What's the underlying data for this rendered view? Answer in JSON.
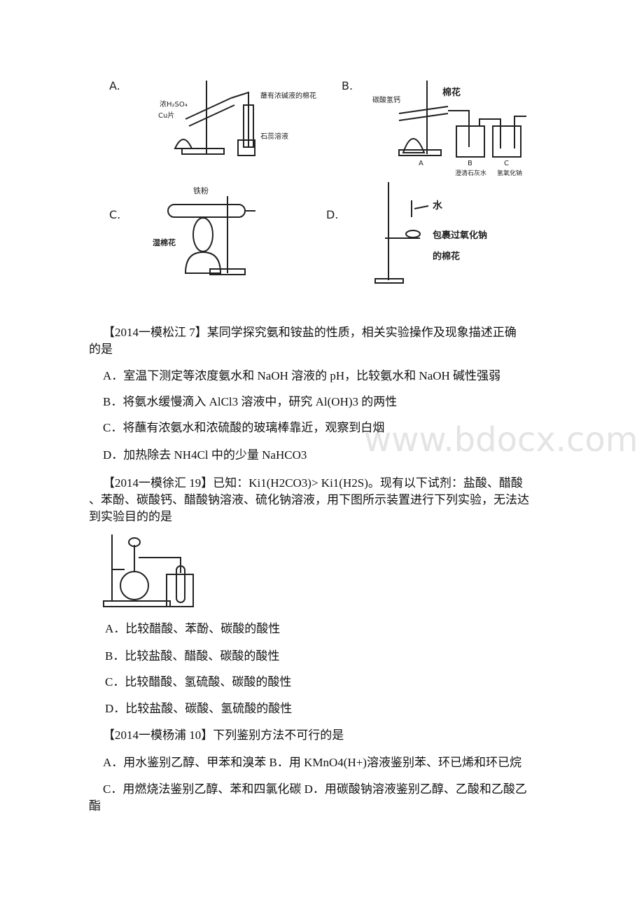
{
  "watermark": "www.bdocx.com",
  "figure1": {
    "panels": [
      {
        "label": "A.",
        "notes": [
          "浓H₂SO₄",
          "Cu片",
          "蘸有浓碱液的棉花",
          "石蕊溶液"
        ]
      },
      {
        "label": "B.",
        "notes": [
          "碳酸氢钙",
          "棉花",
          "A",
          "B",
          "C",
          "澄清石灰水",
          "氢氧化钠"
        ]
      },
      {
        "label": "C.",
        "notes": [
          "铁粉",
          "湿棉花"
        ]
      },
      {
        "label": "D.",
        "notes": [
          "水",
          "包裹过氧化钠",
          "的棉花"
        ]
      }
    ]
  },
  "q1": {
    "lines": [
      "【2014一模松江 7】某同学探究氨和铵盐的性质，相关实验操作及现象描述正确",
      "的是"
    ],
    "options": [
      "A．室温下测定等浓度氨水和 NaOH 溶液的 pH，比较氨水和 NaOH 碱性强弱",
      "B．将氨水缓慢滴入 AlCl3 溶液中，研究 Al(OH)3 的两性",
      "C．将蘸有浓氨水和浓硫酸的玻璃棒靠近，观察到白烟",
      "D．加热除去 NH4Cl 中的少量 NaHCO3"
    ]
  },
  "q2": {
    "lines": [
      "【2014一模徐汇 19】已知：Ki1(H2CO3)> Ki1(H2S)。现有以下试剂：盐酸、醋酸",
      "、苯酚、碳酸钙、醋酸钠溶液、硫化钠溶液，用下图所示装置进行下列实验，无法达",
      "到实验目的的是"
    ],
    "options": [
      "A．比较醋酸、苯酚、碳酸的酸性",
      "B．比较盐酸、醋酸、碳酸的酸性",
      "C．比较醋酸、氢硫酸、碳酸的酸性",
      "D．比较盐酸、碳酸、氢硫酸的酸性"
    ]
  },
  "q3": {
    "lines": [
      "【2014一模杨浦 10】下列鉴别方法不可行的是"
    ],
    "options": [
      "A．用水鉴别乙醇、甲苯和溴苯  B．用 KMnO4(H+)溶液鉴别苯、环已烯和环已烷",
      "C．用燃烧法鉴别乙醇、苯和四氯化碳 D．用碳酸钠溶液鉴别乙醇、乙酸和乙酸乙",
      "酯"
    ]
  }
}
